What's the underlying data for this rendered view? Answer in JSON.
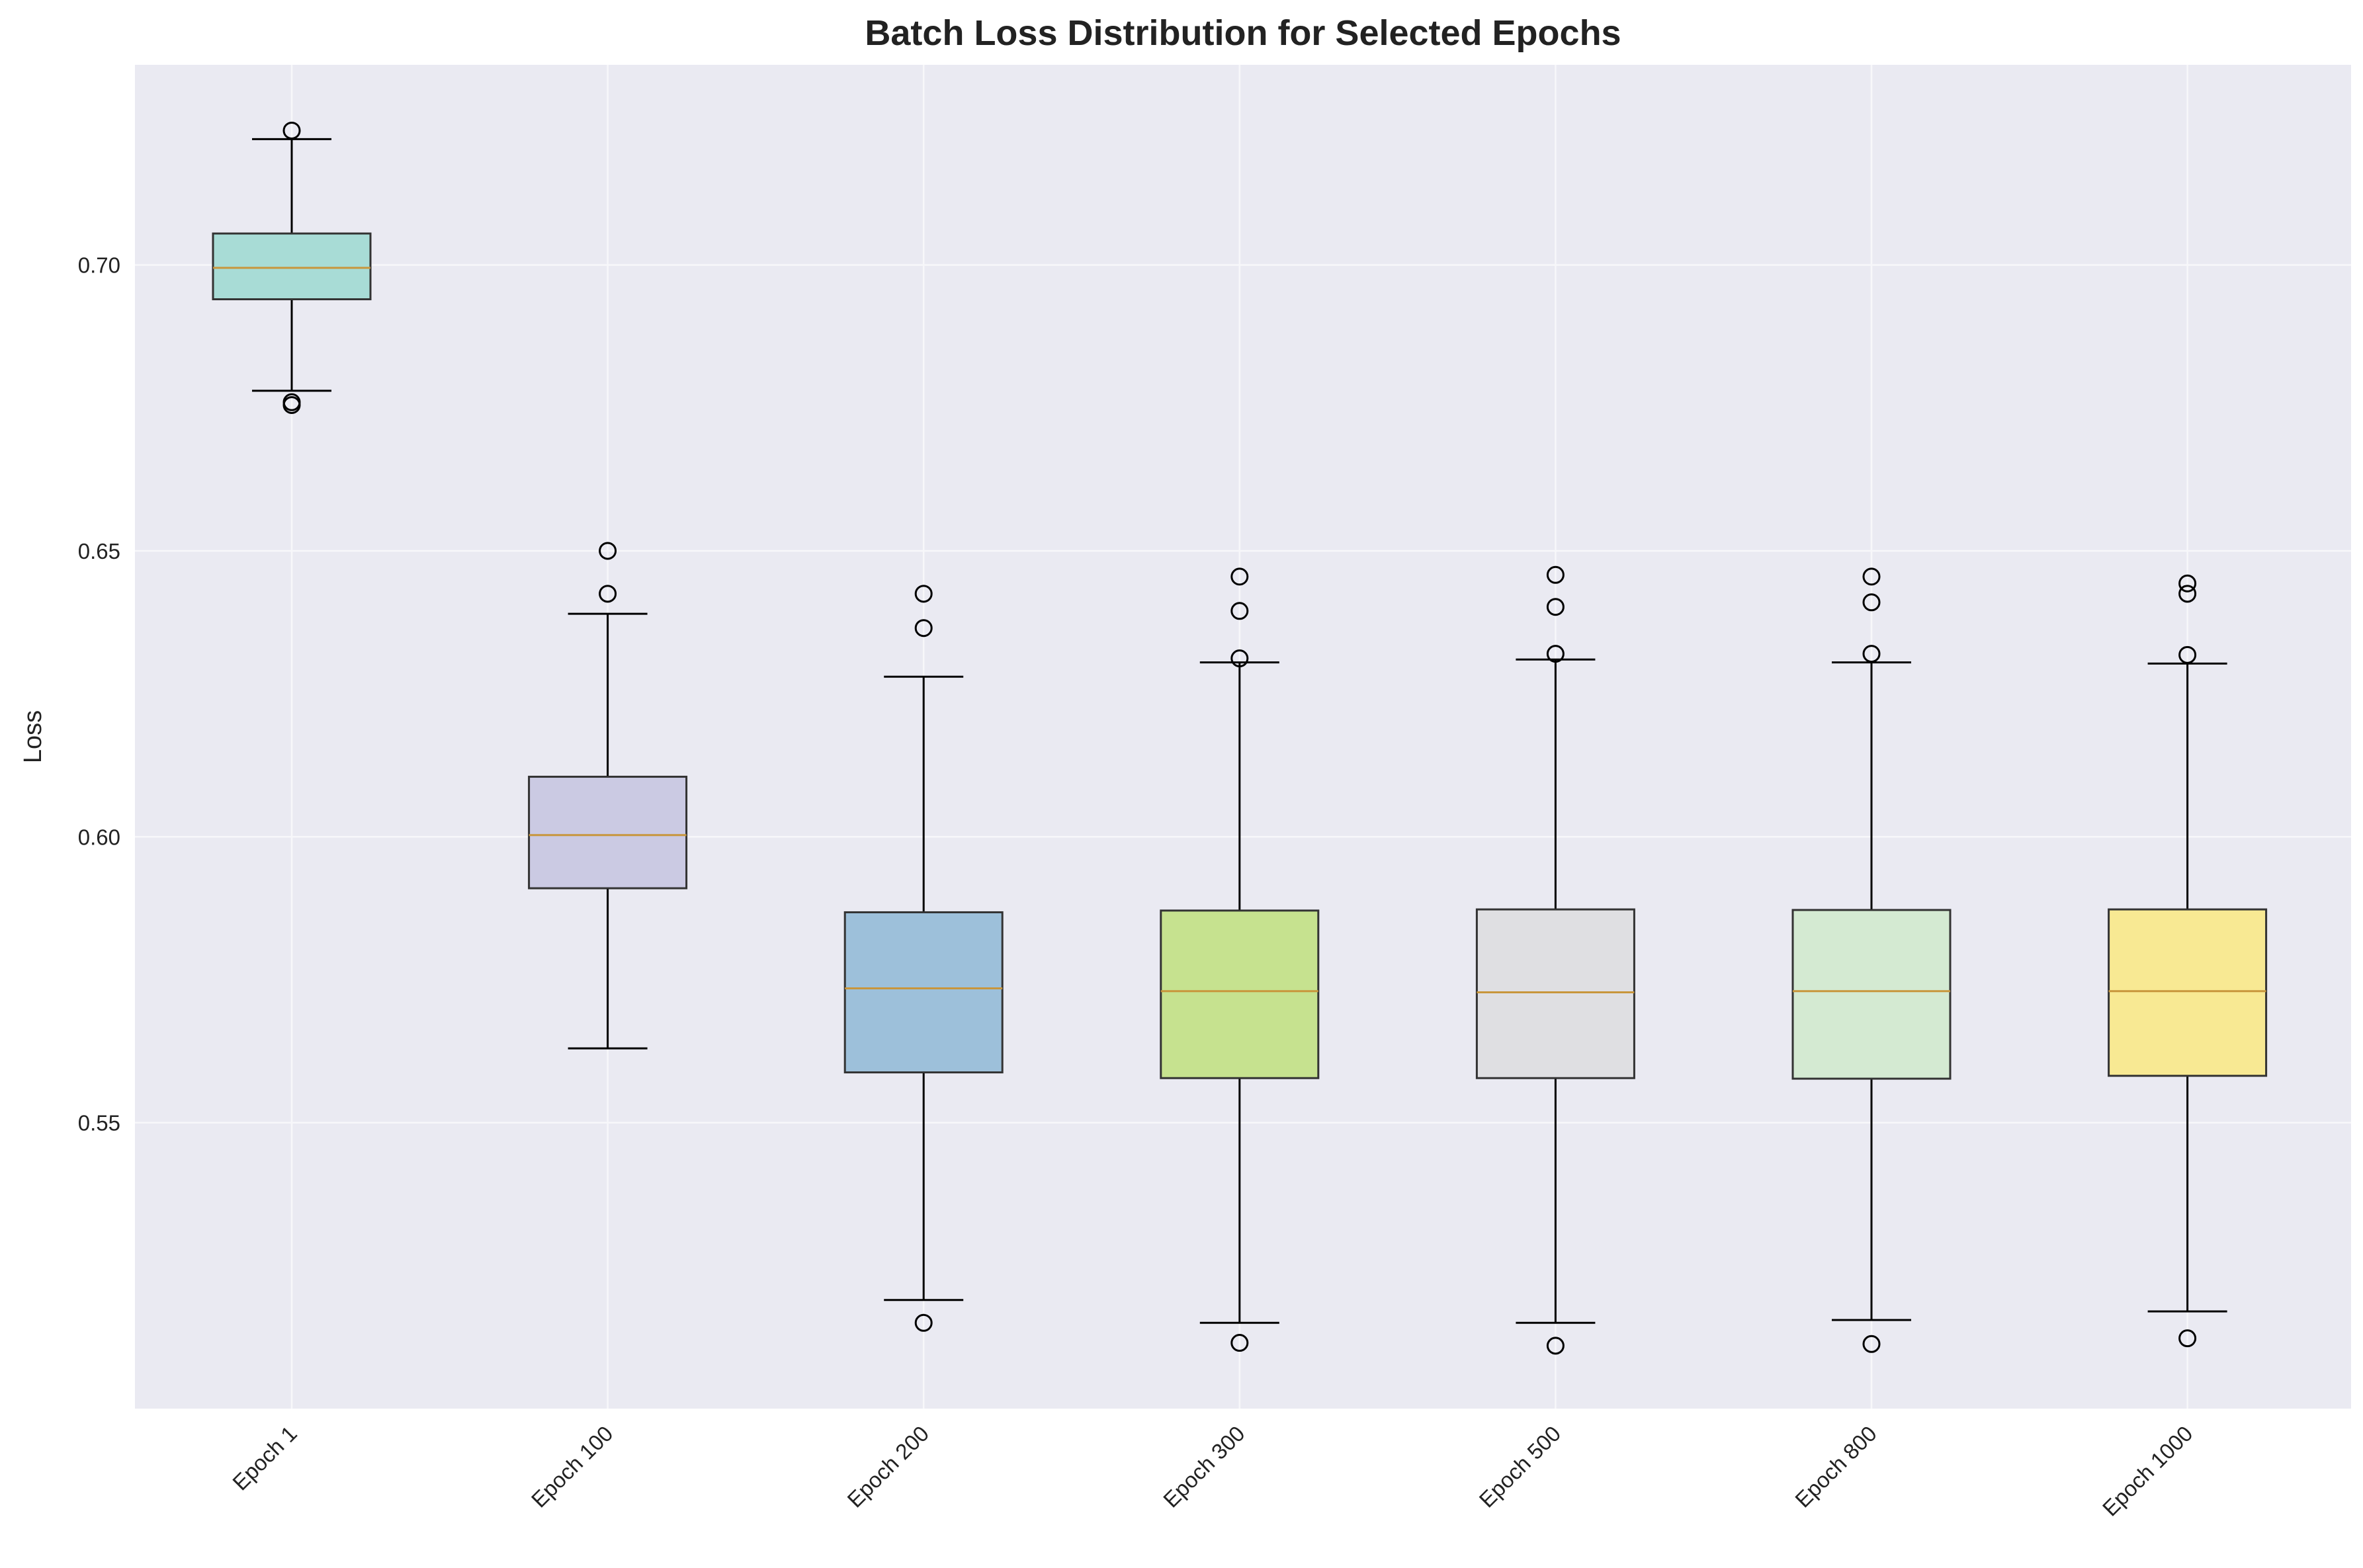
{
  "chart_data": {
    "type": "box",
    "title": "Batch Loss Distribution for Selected Epochs",
    "xlabel": "",
    "ylabel": "Loss",
    "ylim": [
      0.5,
      0.735
    ],
    "yticks": [
      0.55,
      0.6,
      0.65,
      0.7
    ],
    "ytick_labels": [
      "0.55",
      "0.60",
      "0.65",
      "0.70"
    ],
    "grid": true,
    "colors": {
      "background": "#EAEAF2",
      "grid": "#F7F7FA",
      "median": "#C8963C",
      "box_edge": "#333333",
      "whisker": "#000000"
    },
    "boxes": [
      {
        "label": "Epoch 1",
        "color": "#A8DCD6",
        "whisker_low": 0.678,
        "q1": 0.694,
        "median": 0.6995,
        "q3": 0.7055,
        "whisker_high": 0.722,
        "outliers": [
          0.7235,
          0.6755,
          0.676
        ]
      },
      {
        "label": "Epoch 100",
        "color": "#CBCAE3",
        "whisker_low": 0.563,
        "q1": 0.591,
        "median": 0.6003,
        "q3": 0.6105,
        "whisker_high": 0.639,
        "outliers": [
          0.65,
          0.6425
        ]
      },
      {
        "label": "Epoch 200",
        "color": "#9DC0DA",
        "whisker_low": 0.519,
        "q1": 0.5588,
        "median": 0.5735,
        "q3": 0.5868,
        "whisker_high": 0.628,
        "outliers": [
          0.6425,
          0.6365,
          0.515
        ]
      },
      {
        "label": "Epoch 300",
        "color": "#C6E28F",
        "whisker_low": 0.515,
        "q1": 0.5578,
        "median": 0.573,
        "q3": 0.5871,
        "whisker_high": 0.6305,
        "outliers": [
          0.6455,
          0.6395,
          0.6312,
          0.5115
        ]
      },
      {
        "label": "Epoch 500",
        "color": "#DFDFE2",
        "whisker_low": 0.515,
        "q1": 0.5578,
        "median": 0.5728,
        "q3": 0.5873,
        "whisker_high": 0.631,
        "outliers": [
          0.6458,
          0.6402,
          0.632,
          0.511
        ]
      },
      {
        "label": "Epoch 800",
        "color": "#D4EAD2",
        "whisker_low": 0.5155,
        "q1": 0.5577,
        "median": 0.573,
        "q3": 0.5872,
        "whisker_high": 0.6305,
        "outliers": [
          0.6455,
          0.641,
          0.632,
          0.5113
        ]
      },
      {
        "label": "Epoch 1000",
        "color": "#F8E993",
        "whisker_low": 0.517,
        "q1": 0.5582,
        "median": 0.573,
        "q3": 0.5873,
        "whisker_high": 0.6303,
        "outliers": [
          0.6443,
          0.6425,
          0.6318,
          0.5123
        ]
      }
    ]
  }
}
